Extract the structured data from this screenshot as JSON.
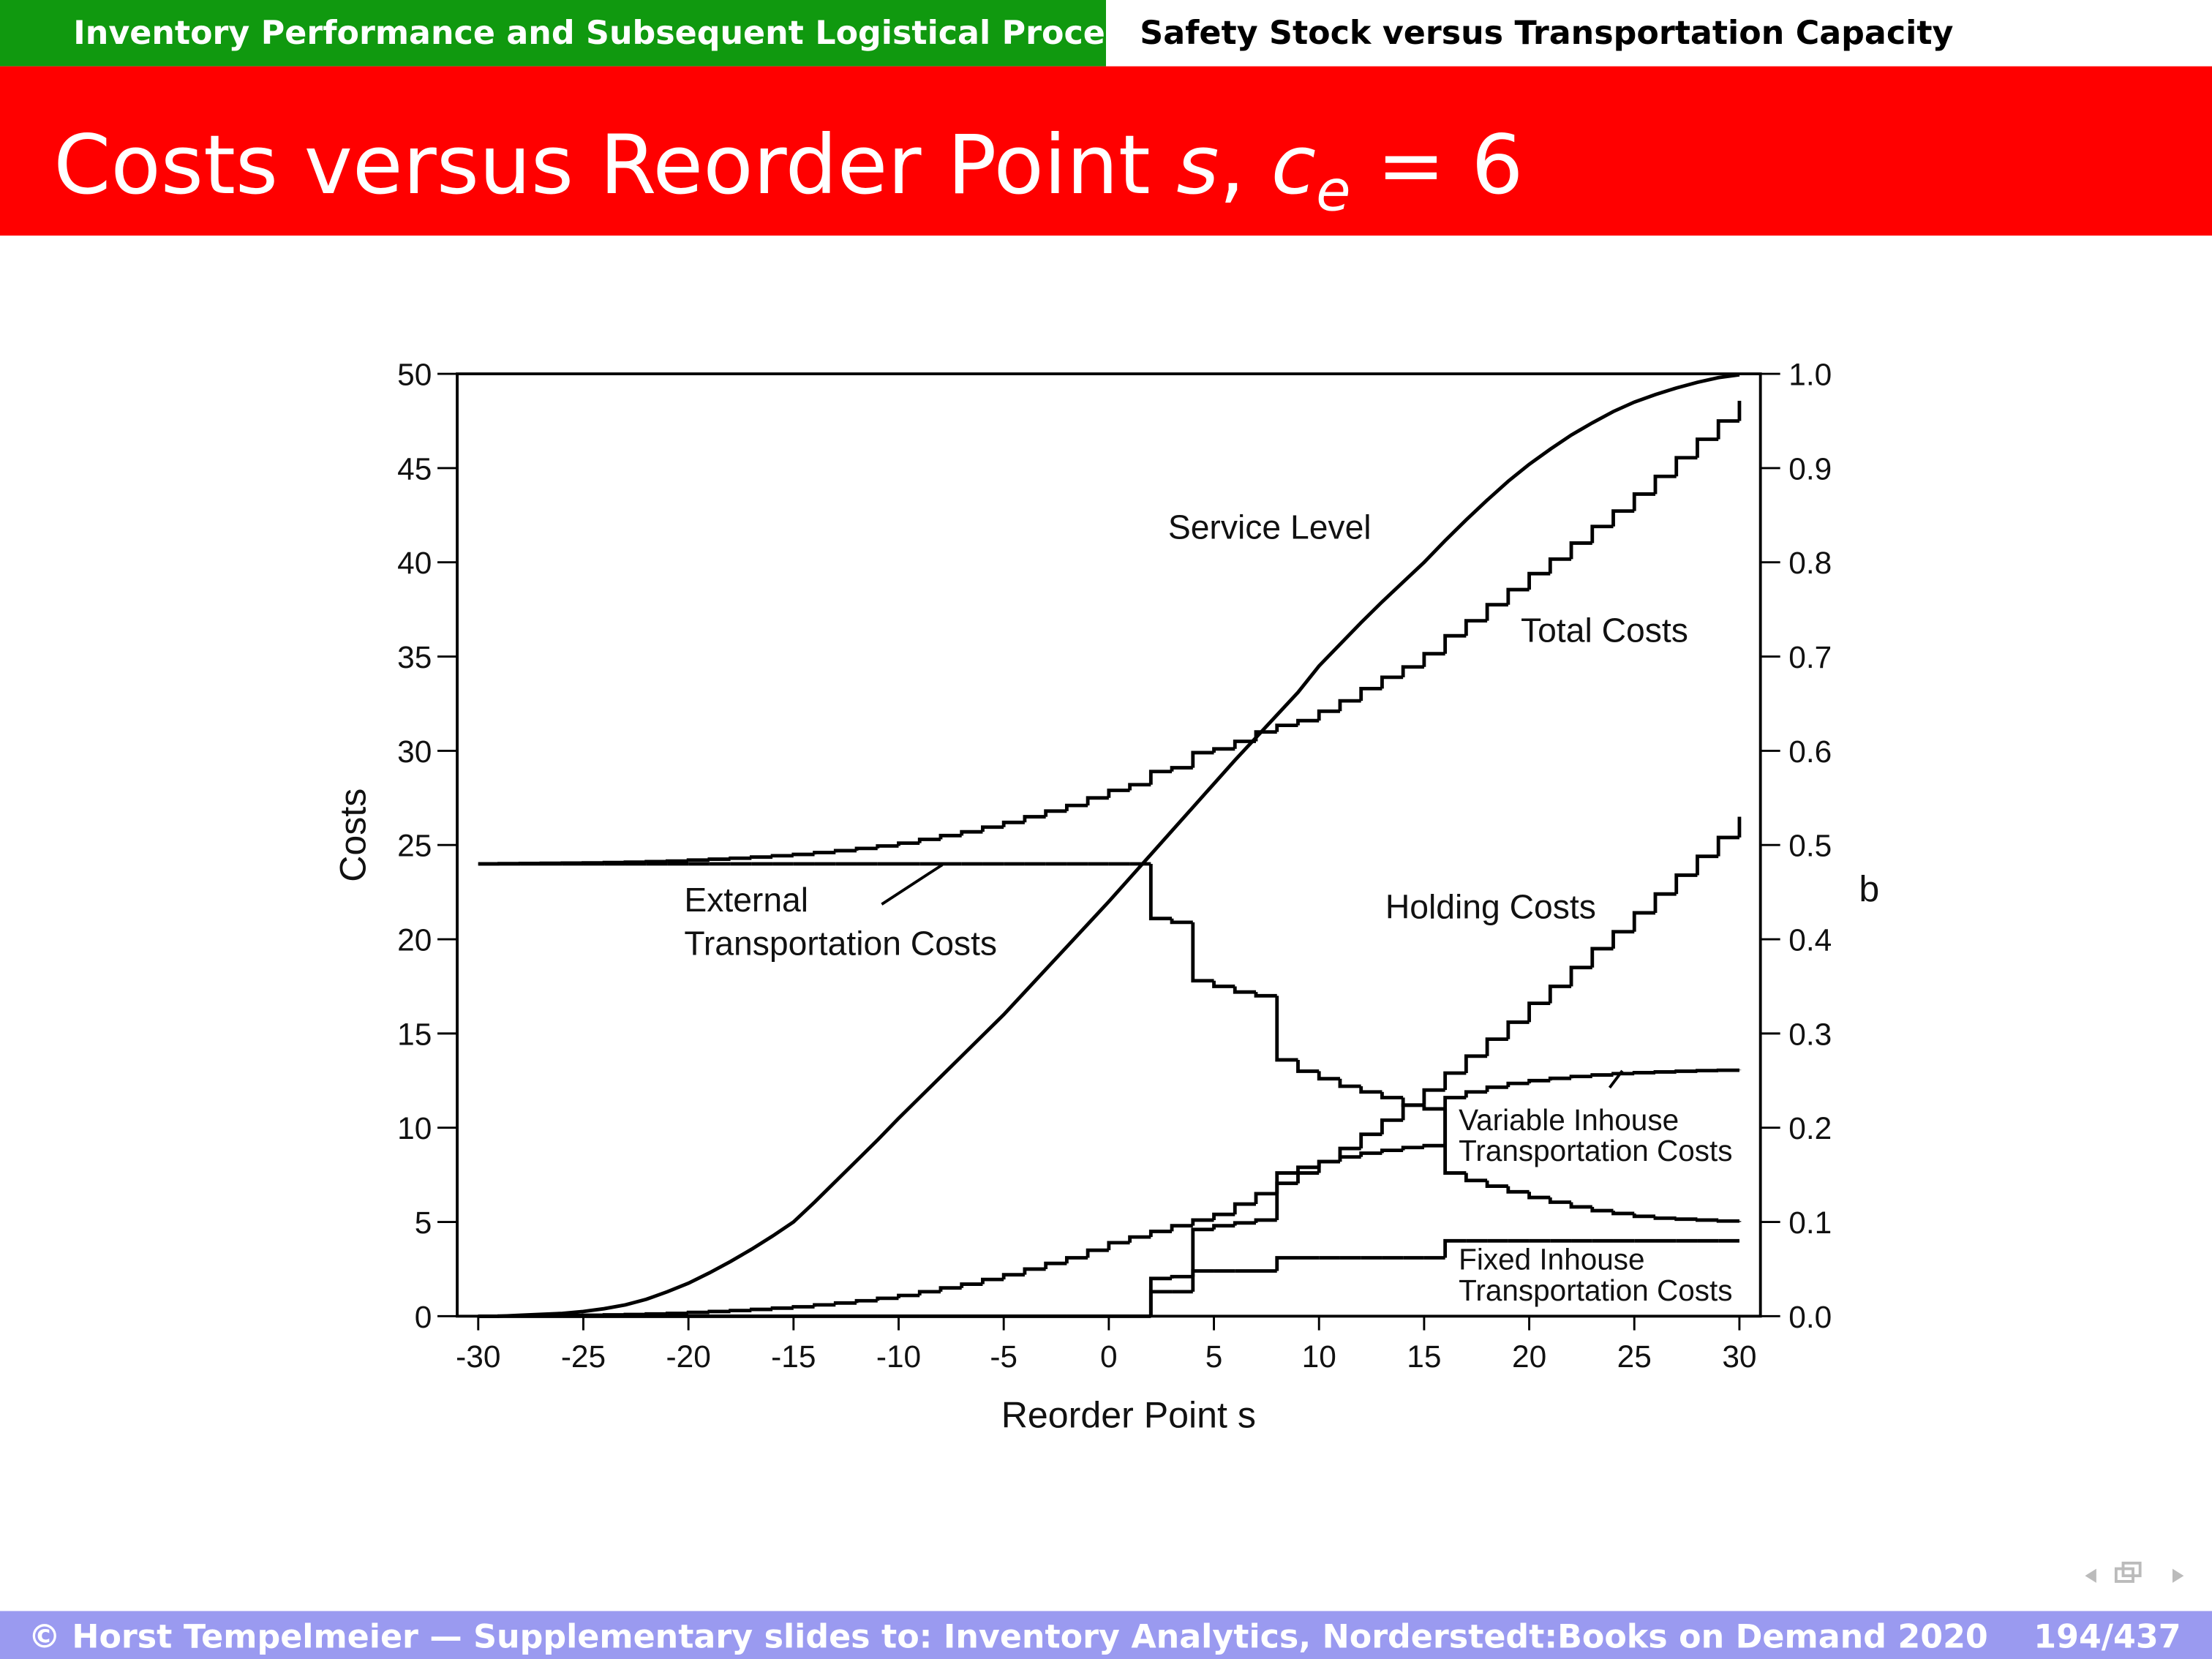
{
  "header": {
    "section": "Inventory Performance and Subsequent Logistical Processes",
    "subsection": "Safety Stock versus Transportation Capacity",
    "title": [
      "Costs versus Reorder Point ",
      "s",
      ", ",
      "c",
      "e",
      " = 6"
    ]
  },
  "chart_data": {
    "type": "step",
    "xlabel": "Reorder Point s",
    "ylabel": "Costs",
    "y2label": "b",
    "x": [
      -30,
      -29,
      -28,
      -27,
      -26,
      -25,
      -24,
      -23,
      -22,
      -21,
      -20,
      -19,
      -18,
      -17,
      -16,
      -15,
      -14,
      -13,
      -12,
      -11,
      -10,
      -9,
      -8,
      -7,
      -6,
      -5,
      -4,
      -3,
      -2,
      -1,
      0,
      1,
      2,
      3,
      4,
      5,
      6,
      7,
      8,
      9,
      10,
      11,
      12,
      13,
      14,
      15,
      16,
      17,
      18,
      19,
      20,
      21,
      22,
      23,
      24,
      25,
      26,
      27,
      28,
      29,
      30
    ],
    "xlim": [
      -31,
      31
    ],
    "ylim": [
      0,
      50
    ],
    "y2lim": [
      0,
      1
    ],
    "xticks": [
      -30,
      -25,
      -20,
      -15,
      -10,
      -5,
      0,
      5,
      10,
      15,
      20,
      25,
      30
    ],
    "yticks": [
      0,
      5,
      10,
      15,
      20,
      25,
      30,
      35,
      40,
      45,
      50
    ],
    "y2ticks": [
      {
        "value": 0,
        "label": "0.0"
      },
      0.1,
      0.2,
      0.3,
      0.4,
      0.5,
      0.6,
      0.7,
      0.8,
      0.9,
      {
        "value": 1,
        "label": "1.0"
      }
    ],
    "series": [
      {
        "name": "Service Level",
        "type": "line",
        "axis": "y2",
        "color": "#000000",
        "values": [
          0,
          0,
          0.001,
          0.002,
          0.003,
          0.005,
          0.008,
          0.012,
          0.018,
          0.026,
          0.035,
          0.046,
          0.058,
          0.071,
          0.085,
          0.1,
          0.121,
          0.143,
          0.165,
          0.187,
          0.21,
          0.232,
          0.254,
          0.276,
          0.298,
          0.32,
          0.344,
          0.368,
          0.392,
          0.416,
          0.44,
          0.465,
          0.49,
          0.515,
          0.54,
          0.565,
          0.59,
          0.614,
          0.638,
          0.662,
          0.69,
          0.713,
          0.736,
          0.758,
          0.779,
          0.8,
          0.823,
          0.845,
          0.866,
          0.886,
          0.904,
          0.92,
          0.935,
          0.948,
          0.96,
          0.97,
          0.978,
          0.985,
          0.991,
          0.996,
          0.999
        ]
      },
      {
        "name": "Total Costs",
        "color": "#000000",
        "values": [
          24,
          24.01,
          24.02,
          24.03,
          24.04,
          24.05,
          24.07,
          24.09,
          24.12,
          24.15,
          24.2,
          24.25,
          24.3,
          24.36,
          24.43,
          24.5,
          24.6,
          24.7,
          24.82,
          24.95,
          25.1,
          25.3,
          25.5,
          25.7,
          25.95,
          26.2,
          26.5,
          26.8,
          27.1,
          27.5,
          27.9,
          28.2,
          28.9,
          29.1,
          29.9,
          30.1,
          30.5,
          31,
          31.35,
          31.6,
          32.1,
          32.65,
          33.3,
          33.9,
          34.45,
          35.15,
          36.1,
          36.9,
          37.75,
          38.55,
          39.4,
          40.17,
          41.02,
          41.9,
          42.72,
          43.62,
          44.56,
          45.55,
          46.53,
          47.5,
          48.57
        ]
      },
      {
        "name": "Holding Costs",
        "color": "#000000",
        "values": [
          0,
          0.01,
          0.02,
          0.03,
          0.04,
          0.05,
          0.07,
          0.09,
          0.12,
          0.15,
          0.2,
          0.25,
          0.3,
          0.36,
          0.43,
          0.5,
          0.6,
          0.7,
          0.82,
          0.95,
          1.1,
          1.3,
          1.5,
          1.7,
          1.95,
          2.2,
          2.5,
          2.8,
          3.1,
          3.5,
          3.9,
          4.2,
          4.5,
          4.8,
          5.1,
          5.4,
          5.95,
          6.5,
          7.05,
          7.6,
          8.2,
          8.9,
          9.65,
          10.4,
          11.2,
          12,
          12.9,
          13.8,
          14.7,
          15.6,
          16.6,
          17.5,
          18.5,
          19.5,
          20.4,
          21.4,
          22.4,
          23.4,
          24.4,
          25.4,
          26.5
        ]
      },
      {
        "name": "External\nTransportation Costs",
        "color": "#000000",
        "values": [
          24,
          24,
          24,
          24,
          24,
          24,
          24,
          24,
          24,
          24,
          24,
          24,
          24,
          24,
          24,
          24,
          24,
          24,
          24,
          24,
          24,
          24,
          24,
          24,
          24,
          24,
          24,
          24,
          24,
          24,
          24,
          24,
          21.1,
          20.9,
          17.8,
          17.5,
          17.2,
          17,
          13.6,
          13,
          12.6,
          12.2,
          11.9,
          11.6,
          11.2,
          11,
          7.6,
          7.2,
          6.9,
          6.6,
          6.3,
          6.05,
          5.8,
          5.6,
          5.45,
          5.3,
          5.2,
          5.15,
          5.1,
          5.05,
          5
        ]
      },
      {
        "name": "Variable Inhouse\nTransportation Costs",
        "color": "#000000",
        "values": [
          0,
          0,
          0,
          0,
          0,
          0,
          0,
          0,
          0,
          0,
          0,
          0,
          0,
          0,
          0,
          0,
          0,
          0,
          0,
          0,
          0,
          0,
          0,
          0,
          0,
          0,
          0,
          0,
          0,
          0,
          0,
          0,
          2,
          2.1,
          4.6,
          4.8,
          4.95,
          5.1,
          7.6,
          7.9,
          8.2,
          8.45,
          8.65,
          8.8,
          8.95,
          9.05,
          11.6,
          11.9,
          12.15,
          12.35,
          12.5,
          12.62,
          12.72,
          12.8,
          12.87,
          12.92,
          12.96,
          13,
          13.03,
          13.05,
          13.07
        ]
      },
      {
        "name": "Fixed Inhouse\nTransportation Costs",
        "color": "#000000",
        "values": [
          0,
          0,
          0,
          0,
          0,
          0,
          0,
          0,
          0,
          0,
          0,
          0,
          0,
          0,
          0,
          0,
          0,
          0,
          0,
          0,
          0,
          0,
          0,
          0,
          0,
          0,
          0,
          0,
          0,
          0,
          0,
          0,
          1.3,
          1.3,
          2.4,
          2.4,
          2.4,
          2.4,
          3.1,
          3.1,
          3.1,
          3.1,
          3.1,
          3.1,
          3.1,
          3.1,
          4,
          4,
          4,
          4,
          4,
          4,
          4,
          4,
          4,
          4,
          4,
          4,
          4,
          4,
          4
        ]
      }
    ]
  },
  "footer": {
    "text": "© Horst Tempelmeier — Supplementary slides to: Inventory Analytics, Norderstedt:Books on Demand 2020",
    "page": "194/437"
  }
}
